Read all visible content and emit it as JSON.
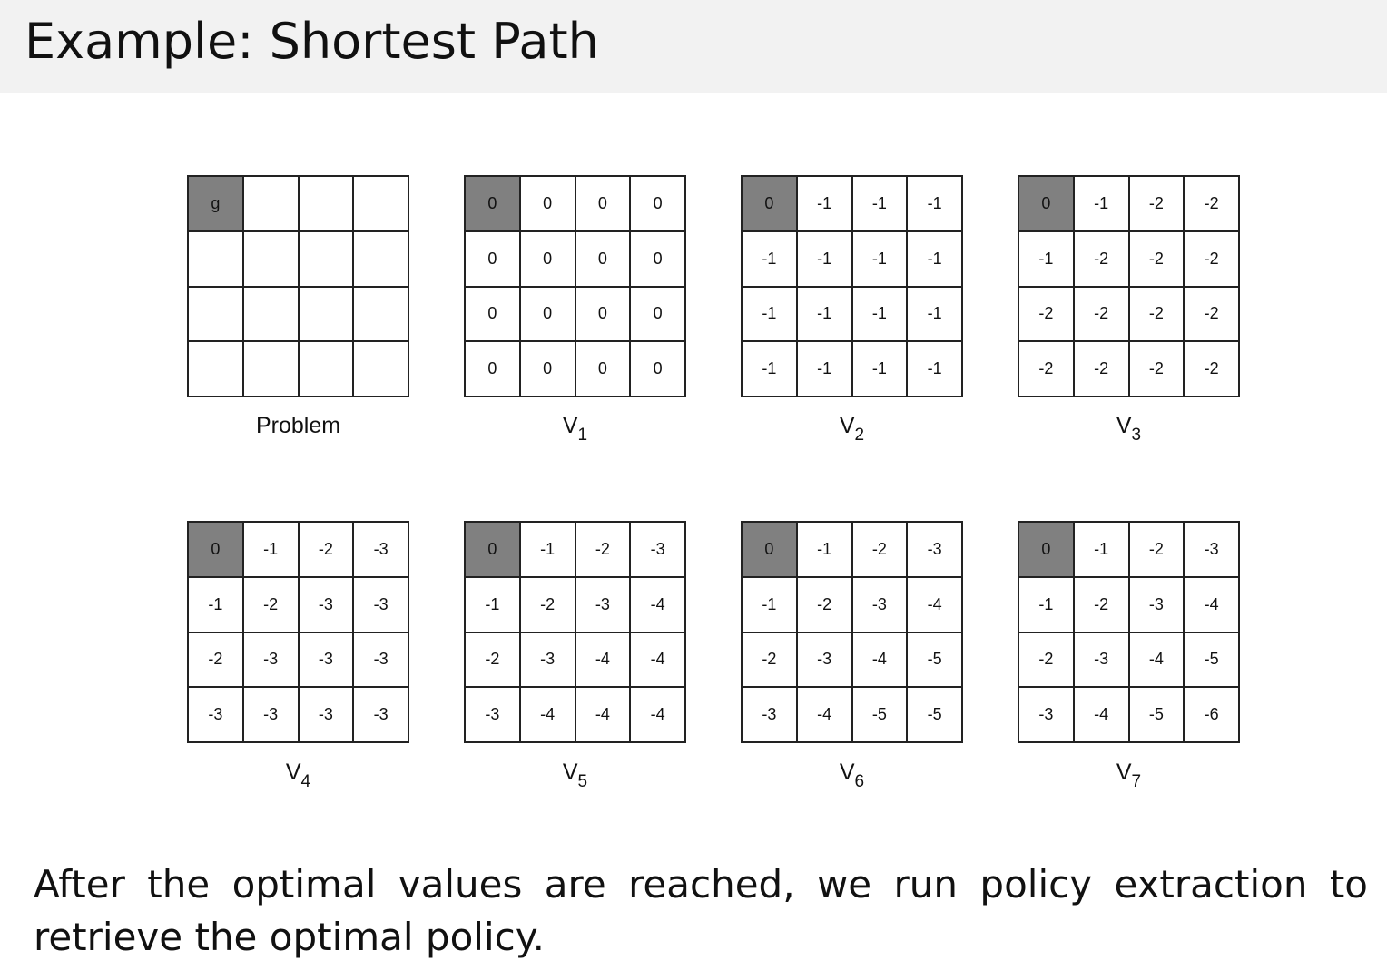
{
  "slide": {
    "title": "Example: Shortest Path",
    "body": "After the optimal values are reached, we run policy extraction to retrieve the optimal policy."
  },
  "colors": {
    "goal_cell": "#808080",
    "title_bar": "#f2f2f2"
  },
  "grids": [
    {
      "label": "Problem",
      "sub": "",
      "cells": [
        [
          "g",
          "",
          "",
          ""
        ],
        [
          "",
          "",
          "",
          ""
        ],
        [
          "",
          "",
          "",
          ""
        ],
        [
          "",
          "",
          "",
          ""
        ]
      ]
    },
    {
      "label": "V",
      "sub": "1",
      "cells": [
        [
          "0",
          "0",
          "0",
          "0"
        ],
        [
          "0",
          "0",
          "0",
          "0"
        ],
        [
          "0",
          "0",
          "0",
          "0"
        ],
        [
          "0",
          "0",
          "0",
          "0"
        ]
      ]
    },
    {
      "label": "V",
      "sub": "2",
      "cells": [
        [
          "0",
          "-1",
          "-1",
          "-1"
        ],
        [
          "-1",
          "-1",
          "-1",
          "-1"
        ],
        [
          "-1",
          "-1",
          "-1",
          "-1"
        ],
        [
          "-1",
          "-1",
          "-1",
          "-1"
        ]
      ]
    },
    {
      "label": "V",
      "sub": "3",
      "cells": [
        [
          "0",
          "-1",
          "-2",
          "-2"
        ],
        [
          "-1",
          "-2",
          "-2",
          "-2"
        ],
        [
          "-2",
          "-2",
          "-2",
          "-2"
        ],
        [
          "-2",
          "-2",
          "-2",
          "-2"
        ]
      ]
    },
    {
      "label": "V",
      "sub": "4",
      "cells": [
        [
          "0",
          "-1",
          "-2",
          "-3"
        ],
        [
          "-1",
          "-2",
          "-3",
          "-3"
        ],
        [
          "-2",
          "-3",
          "-3",
          "-3"
        ],
        [
          "-3",
          "-3",
          "-3",
          "-3"
        ]
      ]
    },
    {
      "label": "V",
      "sub": "5",
      "cells": [
        [
          "0",
          "-1",
          "-2",
          "-3"
        ],
        [
          "-1",
          "-2",
          "-3",
          "-4"
        ],
        [
          "-2",
          "-3",
          "-4",
          "-4"
        ],
        [
          "-3",
          "-4",
          "-4",
          "-4"
        ]
      ]
    },
    {
      "label": "V",
      "sub": "6",
      "cells": [
        [
          "0",
          "-1",
          "-2",
          "-3"
        ],
        [
          "-1",
          "-2",
          "-3",
          "-4"
        ],
        [
          "-2",
          "-3",
          "-4",
          "-5"
        ],
        [
          "-3",
          "-4",
          "-5",
          "-5"
        ]
      ]
    },
    {
      "label": "V",
      "sub": "7",
      "cells": [
        [
          "0",
          "-1",
          "-2",
          "-3"
        ],
        [
          "-1",
          "-2",
          "-3",
          "-4"
        ],
        [
          "-2",
          "-3",
          "-4",
          "-5"
        ],
        [
          "-3",
          "-4",
          "-5",
          "-6"
        ]
      ]
    }
  ]
}
